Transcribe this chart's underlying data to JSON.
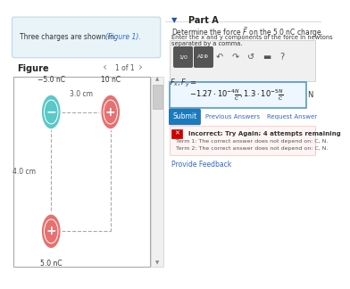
{
  "bg_color": "#ffffff",
  "fig_width": 3.5,
  "fig_height": 3.04,
  "top_box_text": "Three charges are shown in (Figure 1).",
  "top_box_bg": "#e8f4f8",
  "top_box_border": "#c0d8e8",
  "figure_label": "Figure",
  "nav_text": "1 of 1",
  "charge1_label": "−5.0 nC",
  "charge1_color": "#5bc8c8",
  "charge1_sign": "−",
  "charge2_label": "10 nC",
  "charge2_color": "#e87070",
  "charge2_sign": "+",
  "charge3_label": "5.0 nC",
  "charge3_color": "#e87070",
  "charge3_sign": "+",
  "dist_horiz_label": "3.0 cm",
  "dist_vert_label": "4.0 cm",
  "part_label": "Part A",
  "part_arrow_color": "#2255aa",
  "answer_box_border": "#5599cc",
  "answer_box_bg": "#eef6ff",
  "submit_btn_color": "#1a7abd",
  "submit_btn_text": "Submit",
  "error_text": "Incorrect; Try Again; 4 attempts remaining",
  "error_box_bg": "#fff5f5",
  "error_box_border": "#ffcccc",
  "term1_text": "Term 1: The correct answer does not depend on: C, N.",
  "term2_text": "Term 2: The correct answer does not depend on: C, N.",
  "feedback_link": "Provide Feedback",
  "Fx_Fy_label": "$F_x, F_y =$"
}
